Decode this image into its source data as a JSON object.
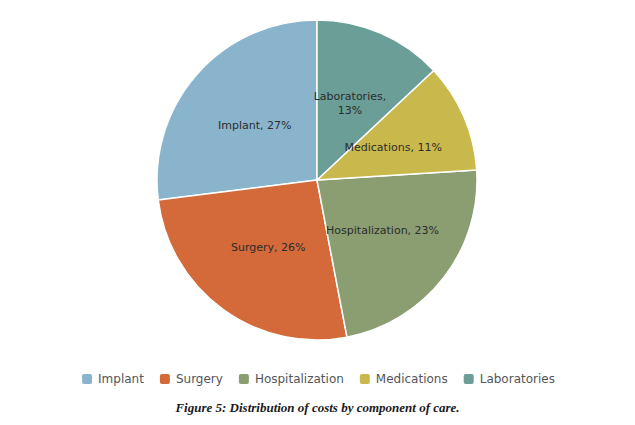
{
  "chart_data": {
    "type": "pie",
    "title": "Figure 5: Distribution of costs by component of care.",
    "categories": [
      "Implant",
      "Surgery",
      "Hospitalization",
      "Medications",
      "Laboratories"
    ],
    "values": [
      27,
      26,
      23,
      11,
      13
    ],
    "value_labels": [
      "Implant, 27%",
      "Surgery, 26%",
      "Hospitalization, 23%",
      "Medications, 11%",
      "Laboratories,\n13%"
    ],
    "colors": [
      "#8ab4cc",
      "#d4693a",
      "#8a9e72",
      "#c9b84c",
      "#6a9e96"
    ],
    "data_labels": true,
    "legend": "bottom"
  }
}
